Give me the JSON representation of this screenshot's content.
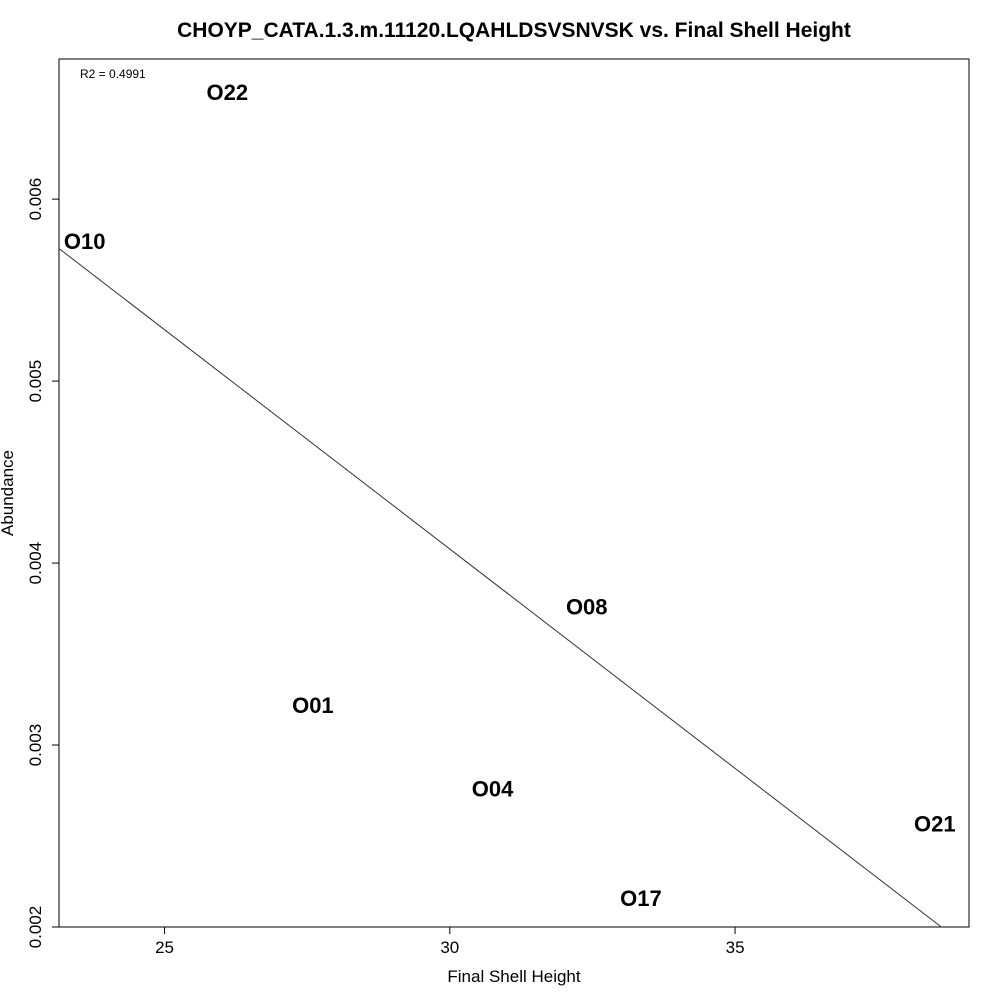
{
  "chart_data": {
    "type": "scatter",
    "title": "CHOYP_CATA.1.3.m.11120.LQAHLDSVSNVSK vs. Final Shell Height",
    "xlabel": "Final Shell Height",
    "ylabel": "Abundance",
    "xlim": [
      23.15,
      39.1
    ],
    "ylim": [
      0.002,
      0.00677
    ],
    "x_ticks": [
      {
        "value": 25,
        "label": "25"
      },
      {
        "value": 30,
        "label": "30"
      },
      {
        "value": 35,
        "label": "35"
      }
    ],
    "y_ticks": [
      {
        "value": 0.002,
        "label": "0.002"
      },
      {
        "value": 0.003,
        "label": "0.003"
      },
      {
        "value": 0.004,
        "label": "0.004"
      },
      {
        "value": 0.005,
        "label": "0.005"
      },
      {
        "value": 0.006,
        "label": "0.006"
      }
    ],
    "annotation": "R2 = 0.4991",
    "points": [
      {
        "label": "O22",
        "x": 26.1,
        "y": 0.00659
      },
      {
        "label": "O10",
        "x": 23.6,
        "y": 0.00577
      },
      {
        "label": "O08",
        "x": 32.4,
        "y": 0.00376
      },
      {
        "label": "O01",
        "x": 27.6,
        "y": 0.00322
      },
      {
        "label": "O04",
        "x": 30.75,
        "y": 0.00276
      },
      {
        "label": "O21",
        "x": 38.5,
        "y": 0.00257
      },
      {
        "label": "O17",
        "x": 33.35,
        "y": 0.00216
      }
    ],
    "fit_line": {
      "intercept": 0.01131,
      "slope": -0.0002411
    },
    "grid": false,
    "legend": "none"
  }
}
